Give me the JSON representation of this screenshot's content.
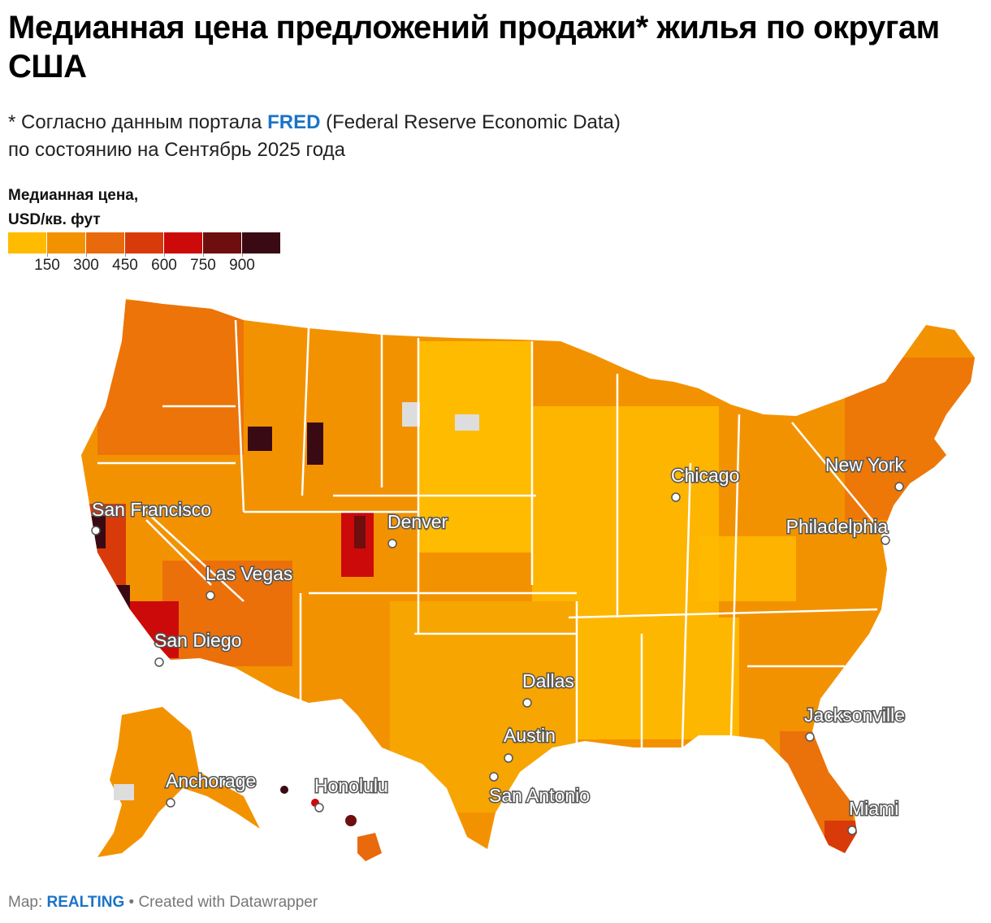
{
  "title": "Медианная цена предложений продажи* жилья по округам США",
  "subtitle": {
    "line1_prefix": "* Согласно данным портала",
    "line1_link": "FRED",
    "line1_suffix": "(Federal Reserve Economic Data)",
    "line2": "по состоянию на Сентябрь 2025 года"
  },
  "legend": {
    "title_line1": "Медианная цена,",
    "title_line2": "USD/кв. фут",
    "colors": [
      "#ffbb00",
      "#f39200",
      "#e96a0c",
      "#d83a0a",
      "#cc0a0a",
      "#6e0e0f",
      "#3a0a14"
    ],
    "ticks": [
      "150",
      "300",
      "450",
      "600",
      "750",
      "900"
    ]
  },
  "map": {
    "no_data_color": "#dddddd",
    "cities": [
      {
        "name": "San Francisco"
      },
      {
        "name": "Las Vegas"
      },
      {
        "name": "San Diego"
      },
      {
        "name": "Denver"
      },
      {
        "name": "Chicago"
      },
      {
        "name": "New York"
      },
      {
        "name": "Philadelphia"
      },
      {
        "name": "Dallas"
      },
      {
        "name": "Austin"
      },
      {
        "name": "San Antonio"
      },
      {
        "name": "Jacksonville"
      },
      {
        "name": "Miami"
      },
      {
        "name": "Anchorage"
      },
      {
        "name": "Honolulu"
      }
    ]
  },
  "footer": {
    "prefix": "Map:",
    "brand": "REALTING",
    "suffix": "• Created with Datawrapper"
  }
}
